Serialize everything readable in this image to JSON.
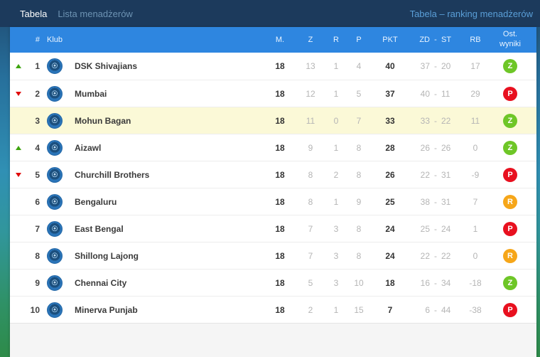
{
  "topbar": {
    "tabs": [
      {
        "label": "Tabela",
        "active": true
      },
      {
        "label": "Lista menadżerów",
        "active": false
      }
    ],
    "right_link": "Tabela – ranking menadżerów"
  },
  "table": {
    "headers": {
      "pos": "#",
      "club": "Klub",
      "matches": "M.",
      "wins": "Z",
      "draws": "R",
      "losses": "P",
      "points": "PKT",
      "goals_for": "ZD",
      "dash": "-",
      "goals_against": "ST",
      "goal_diff": "RB",
      "last_result": "Ost.\nwyniki"
    },
    "dash_symbol": "-",
    "rows": [
      {
        "pos": "1",
        "trend": "up",
        "club": "DSK Shivajians",
        "m": "18",
        "z": "13",
        "r": "1",
        "p": "4",
        "pkt": "40",
        "zd": "37",
        "st": "20",
        "rb": "17",
        "last": "Z",
        "last_color": "green",
        "highlight": false
      },
      {
        "pos": "2",
        "trend": "down",
        "club": "Mumbai",
        "m": "18",
        "z": "12",
        "r": "1",
        "p": "5",
        "pkt": "37",
        "zd": "40",
        "st": "11",
        "rb": "29",
        "last": "P",
        "last_color": "red",
        "highlight": false
      },
      {
        "pos": "3",
        "trend": "none",
        "club": "Mohun Bagan",
        "m": "18",
        "z": "11",
        "r": "0",
        "p": "7",
        "pkt": "33",
        "zd": "33",
        "st": "22",
        "rb": "11",
        "last": "Z",
        "last_color": "green",
        "highlight": true
      },
      {
        "pos": "4",
        "trend": "up",
        "club": "Aizawl",
        "m": "18",
        "z": "9",
        "r": "1",
        "p": "8",
        "pkt": "28",
        "zd": "26",
        "st": "26",
        "rb": "0",
        "last": "Z",
        "last_color": "green",
        "highlight": false
      },
      {
        "pos": "5",
        "trend": "down",
        "club": "Churchill Brothers",
        "m": "18",
        "z": "8",
        "r": "2",
        "p": "8",
        "pkt": "26",
        "zd": "22",
        "st": "31",
        "rb": "-9",
        "last": "P",
        "last_color": "red",
        "highlight": false
      },
      {
        "pos": "6",
        "trend": "none",
        "club": "Bengaluru",
        "m": "18",
        "z": "8",
        "r": "1",
        "p": "9",
        "pkt": "25",
        "zd": "38",
        "st": "31",
        "rb": "7",
        "last": "R",
        "last_color": "orange",
        "highlight": false
      },
      {
        "pos": "7",
        "trend": "none",
        "club": "East Bengal",
        "m": "18",
        "z": "7",
        "r": "3",
        "p": "8",
        "pkt": "24",
        "zd": "25",
        "st": "24",
        "rb": "1",
        "last": "P",
        "last_color": "red",
        "highlight": false
      },
      {
        "pos": "8",
        "trend": "none",
        "club": "Shillong Lajong",
        "m": "18",
        "z": "7",
        "r": "3",
        "p": "8",
        "pkt": "24",
        "zd": "22",
        "st": "22",
        "rb": "0",
        "last": "R",
        "last_color": "orange",
        "highlight": false
      },
      {
        "pos": "9",
        "trend": "none",
        "club": "Chennai City",
        "m": "18",
        "z": "5",
        "r": "3",
        "p": "10",
        "pkt": "18",
        "zd": "16",
        "st": "34",
        "rb": "-18",
        "last": "Z",
        "last_color": "green",
        "highlight": false
      },
      {
        "pos": "10",
        "trend": "none",
        "club": "Minerva Punjab",
        "m": "18",
        "z": "2",
        "r": "1",
        "p": "15",
        "pkt": "7",
        "zd": "6",
        "st": "44",
        "rb": "-38",
        "last": "P",
        "last_color": "red",
        "highlight": false
      }
    ]
  },
  "colors": {
    "topbar_bg": "#1c3a5c",
    "header_bg": "#2e86e0",
    "highlight_row": "#fbf9d7",
    "badge_win": "#6ec627",
    "badge_loss": "#e8101f",
    "badge_draw": "#f6a619",
    "trend_up": "#3ea40f",
    "trend_down": "#e00a0a"
  }
}
